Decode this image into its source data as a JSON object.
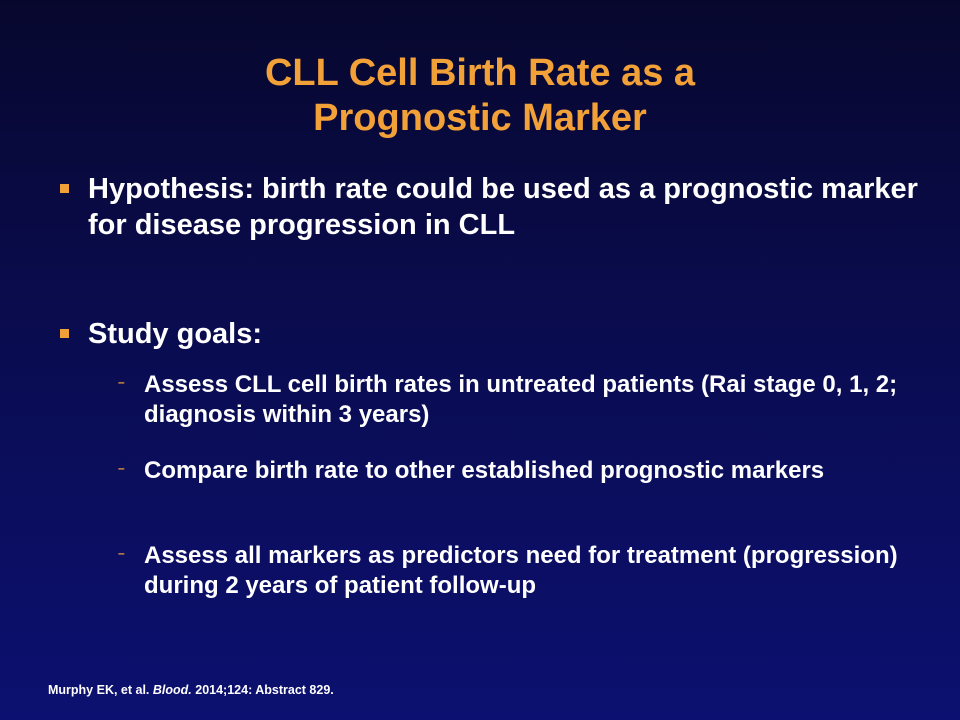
{
  "slide": {
    "title_line1": "CLL Cell Birth Rate as a",
    "title_line2": "Prognostic Marker",
    "bullets": [
      {
        "text": "Hypothesis:  birth rate could be used as a prognostic marker for disease progression in CLL"
      },
      {
        "text": "Study goals:"
      }
    ],
    "sub_bullets": [
      {
        "text": "Assess CLL cell birth rates in untreated patients (Rai stage 0, 1, 2; diagnosis within 3 years)"
      },
      {
        "text": "Compare birth rate to other established prognostic markers"
      },
      {
        "text": "Assess all markers as predictors need for treatment (progression) during 2 years of patient follow-up"
      }
    ],
    "citation": {
      "authors": "Murphy EK, et al. ",
      "journal": "Blood.",
      "details": " 2014;124: Abstract 829."
    }
  },
  "colors": {
    "title": "#f2a038",
    "bullet_marker": "#f2a038",
    "text": "#ffffff",
    "background_top": "#07072e",
    "background_bottom": "#0c1070"
  },
  "icons": {
    "bullet_marker": "square-bullet-icon",
    "sub_bullet_marker": "dash-bullet-icon"
  }
}
